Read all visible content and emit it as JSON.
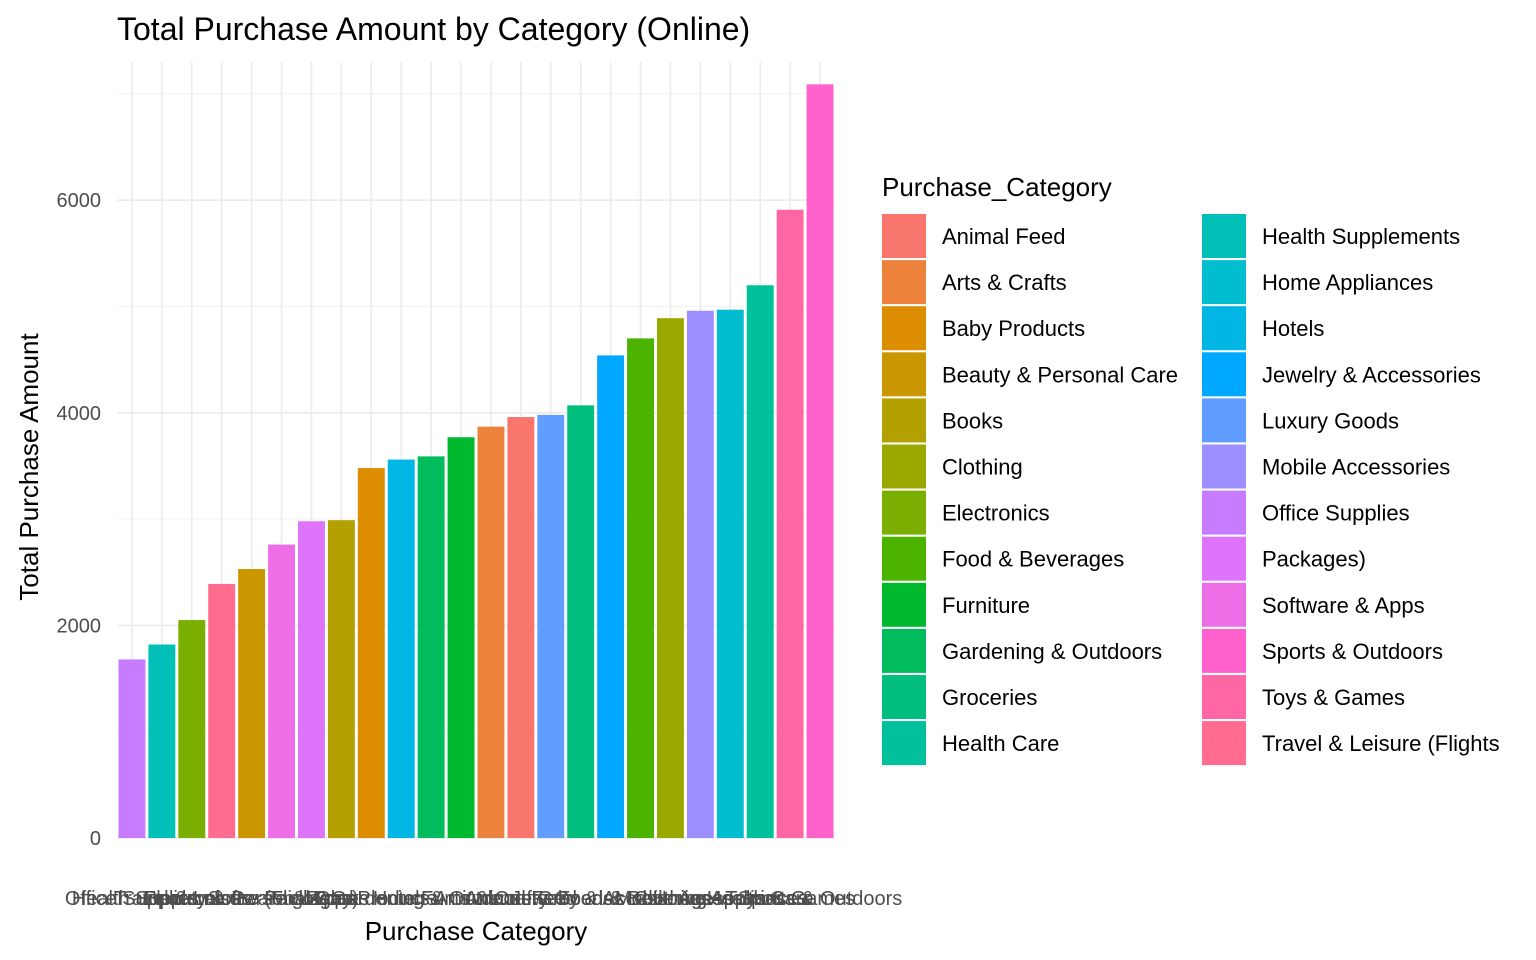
{
  "chart_data": {
    "type": "bar",
    "title": "Total Purchase Amount by Category (Online)",
    "xlabel": "Purchase Category",
    "ylabel": "Total Purchase Amount",
    "ylim": [
      0,
      7300
    ],
    "yticks": [
      0,
      2000,
      4000,
      6000
    ],
    "grid": true,
    "legend": {
      "title": "Purchase_Category",
      "placement": "right",
      "columns": 2,
      "entries": [
        {
          "name": "Animal Feed",
          "color": "#F8766D"
        },
        {
          "name": "Arts & Crafts",
          "color": "#EC823C"
        },
        {
          "name": "Baby Products",
          "color": "#DD8D00"
        },
        {
          "name": "Beauty & Personal Care",
          "color": "#CA9700"
        },
        {
          "name": "Books",
          "color": "#B4A000"
        },
        {
          "name": "Clothing",
          "color": "#9AA800"
        },
        {
          "name": "Electronics",
          "color": "#7AAE00"
        },
        {
          "name": "Food & Beverages",
          "color": "#4CB400"
        },
        {
          "name": "Furniture",
          "color": "#00B92E"
        },
        {
          "name": "Gardening & Outdoors",
          "color": "#00BC5C"
        },
        {
          "name": "Groceries",
          "color": "#00BF7E"
        },
        {
          "name": "Health Care",
          "color": "#00C19C"
        },
        {
          "name": "Health Supplements",
          "color": "#00C0B7"
        },
        {
          "name": "Home Appliances",
          "color": "#00BDD0"
        },
        {
          "name": "Hotels",
          "color": "#00B6E5"
        },
        {
          "name": "Jewelry & Accessories",
          "color": "#00A9FF"
        },
        {
          "name": "Luxury Goods",
          "color": "#619CFF"
        },
        {
          "name": "Mobile Accessories",
          "color": "#9D8FFF"
        },
        {
          "name": "Office Supplies",
          "color": "#C77CFF"
        },
        {
          "name": "Packages)",
          "color": "#DE74FA"
        },
        {
          "name": "Software & Apps",
          "color": "#EE6EE8"
        },
        {
          "name": "Sports & Outdoors",
          "color": "#FF61CC"
        },
        {
          "name": "Toys & Games",
          "color": "#FF67A4"
        },
        {
          "name": "Travel & Leisure (Flights",
          "color": "#FF6C90"
        }
      ]
    },
    "categories": [
      "Office Supplies",
      "Health Supplements",
      "Electronics",
      "Travel & Leisure (Flights",
      "Beauty & Personal Care",
      "Software & Apps",
      "Packages)",
      "Books",
      "Baby Products",
      "Hotels",
      "Gardening & Outdoors",
      "Furniture",
      "Arts & Crafts",
      "Animal Feed",
      "Luxury Goods",
      "Groceries",
      "Jewelry & Accessories",
      "Food & Beverages",
      "Clothing",
      "Mobile Accessories",
      "Home Appliances",
      "Health Care",
      "Toys & Games",
      "Sports & Outdoors"
    ],
    "values": [
      1680,
      1820,
      2050,
      2390,
      2530,
      2760,
      2980,
      2990,
      3480,
      3560,
      3590,
      3770,
      3870,
      3960,
      3980,
      4070,
      4540,
      4700,
      4890,
      4960,
      4970,
      5200,
      5910,
      7090
    ],
    "colors": [
      "#C77CFF",
      "#00C0B7",
      "#7AAE00",
      "#FF6C90",
      "#CA9700",
      "#EE6EE8",
      "#DE74FA",
      "#B4A000",
      "#DD8D00",
      "#00B6E5",
      "#00BC5C",
      "#00B92E",
      "#EC823C",
      "#F8766D",
      "#619CFF",
      "#00BF7E",
      "#00A9FF",
      "#4CB400",
      "#9AA800",
      "#9D8FFF",
      "#00BDD0",
      "#00C19C",
      "#FF67A4",
      "#FF61CC"
    ]
  }
}
